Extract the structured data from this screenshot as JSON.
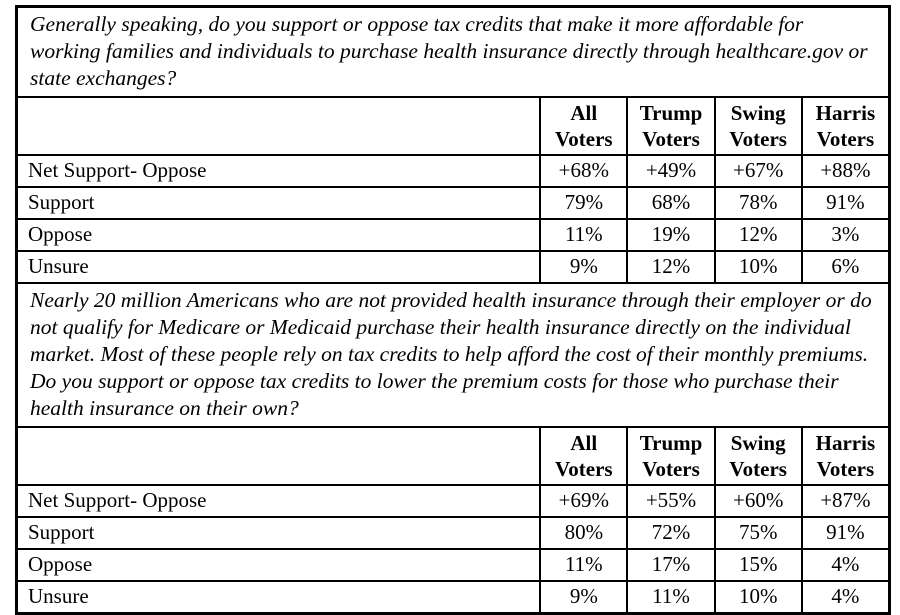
{
  "page": {
    "background_color": "#ffffff",
    "border_color": "#000000",
    "text_color": "#000000"
  },
  "sections": [
    {
      "question": "Generally speaking, do you support or oppose tax credits that make it more affordable for working families and individuals to purchase health insurance directly through healthcare.gov or state exchanges?",
      "columns": [
        "All Voters",
        "Trump Voters",
        "Swing Voters",
        "Harris Voters"
      ],
      "rows": [
        {
          "label": "Net Support- Oppose",
          "values": [
            "+68%",
            "+49%",
            "+67%",
            "+88%"
          ]
        },
        {
          "label": "Support",
          "values": [
            "79%",
            "68%",
            "78%",
            "91%"
          ]
        },
        {
          "label": "Oppose",
          "values": [
            "11%",
            "19%",
            "12%",
            "3%"
          ]
        },
        {
          "label": "Unsure",
          "values": [
            "9%",
            "12%",
            "10%",
            "6%"
          ]
        }
      ]
    },
    {
      "question": "Nearly 20 million Americans who are not provided health insurance through their employer or do not qualify for Medicare or Medicaid purchase their health insurance directly on the individual market. Most of these people rely on tax credits to help afford the cost of their monthly premiums. Do you support or oppose tax credits to lower the premium costs for those who purchase their health insurance on their own?",
      "columns": [
        "All Voters",
        "Trump Voters",
        "Swing Voters",
        "Harris Voters"
      ],
      "rows": [
        {
          "label": "Net Support- Oppose",
          "values": [
            "+69%",
            "+55%",
            "+60%",
            "+87%"
          ]
        },
        {
          "label": "Support",
          "values": [
            "80%",
            "72%",
            "75%",
            "91%"
          ]
        },
        {
          "label": "Oppose",
          "values": [
            "11%",
            "17%",
            "15%",
            "4%"
          ]
        },
        {
          "label": "Unsure",
          "values": [
            "9%",
            "11%",
            "10%",
            "4%"
          ]
        }
      ]
    }
  ]
}
